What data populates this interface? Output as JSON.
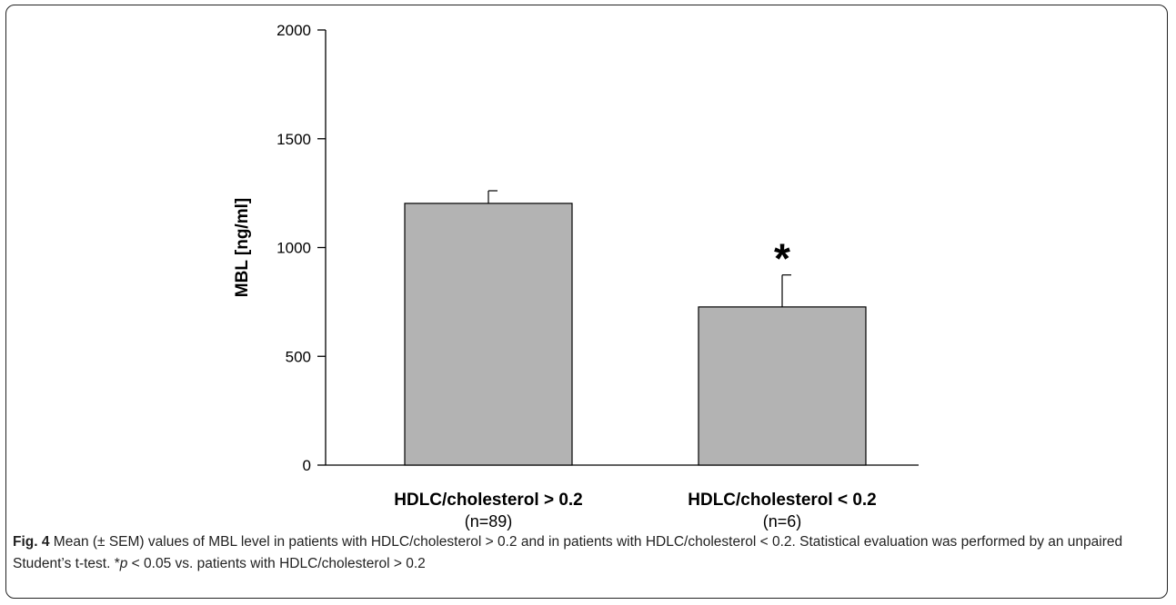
{
  "chart_data": {
    "type": "bar",
    "categories": [
      "HDLC/cholesterol > 0.2",
      "HDLC/cholesterol < 0.2"
    ],
    "sublabels": [
      "(n=89)",
      "(n=6)"
    ],
    "values": [
      1203,
      727
    ],
    "errors": [
      58,
      147
    ],
    "significance": [
      "",
      "*"
    ],
    "ylabel": "MBL [ng/ml]",
    "xlabel": "",
    "ylim": [
      0,
      2000
    ],
    "yticks": [
      0,
      500,
      1000,
      1500,
      2000
    ],
    "grid": false,
    "bar_color": "#b3b3b3"
  },
  "caption": {
    "label": "Fig. 4",
    "text_1": " Mean (± SEM) values of MBL level in patients with HDLC/cholesterol > 0.2 and in patients with HDLC/cholesterol < 0.2. Statistical evaluation was performed by an unpaired Student’s t-test. *",
    "p_symbol": "p",
    "text_2": " < 0.05 vs. patients with HDLC/cholesterol > 0.2"
  }
}
